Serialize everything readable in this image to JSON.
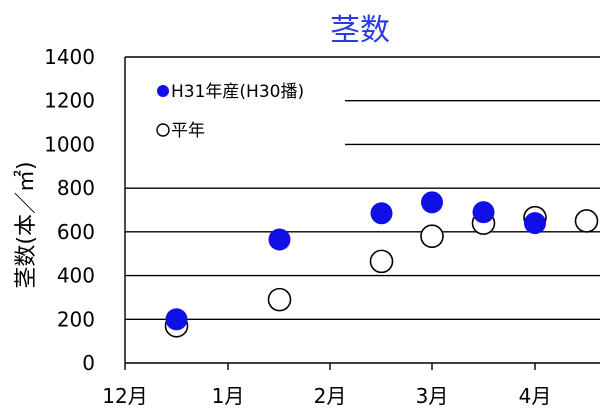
{
  "chart_data": {
    "type": "scatter",
    "title": "茎数",
    "ylabel": "茎数(本／㎡)",
    "xlabel": "",
    "ylim": [
      0,
      1400
    ],
    "yticks": [
      "0",
      "200",
      "400",
      "600",
      "800",
      "1000",
      "1200",
      "1400"
    ],
    "xticks": [
      "12月",
      "1月",
      "2月",
      "3月",
      "4月"
    ],
    "grid": "horizontal",
    "legend_position": "top-left",
    "series": [
      {
        "name": "H31年産(H30播)",
        "marker": "filled-circle",
        "color": "#1010e6",
        "points": [
          {
            "x": "12月後半",
            "y": 200
          },
          {
            "x": "1月後半",
            "y": 565
          },
          {
            "x": "2月後半",
            "y": 685
          },
          {
            "x": "3月前半",
            "y": 735
          },
          {
            "x": "3月後半",
            "y": 690
          },
          {
            "x": "4月前半",
            "y": 640
          }
        ]
      },
      {
        "name": "平年",
        "marker": "open-circle",
        "color": "#000000",
        "points": [
          {
            "x": "12月後半",
            "y": 170
          },
          {
            "x": "1月後半",
            "y": 290
          },
          {
            "x": "2月後半",
            "y": 465
          },
          {
            "x": "3月前半",
            "y": 580
          },
          {
            "x": "3月後半",
            "y": 640
          },
          {
            "x": "4月前半",
            "y": 665
          },
          {
            "x": "4月後半",
            "y": 650
          }
        ]
      }
    ]
  }
}
